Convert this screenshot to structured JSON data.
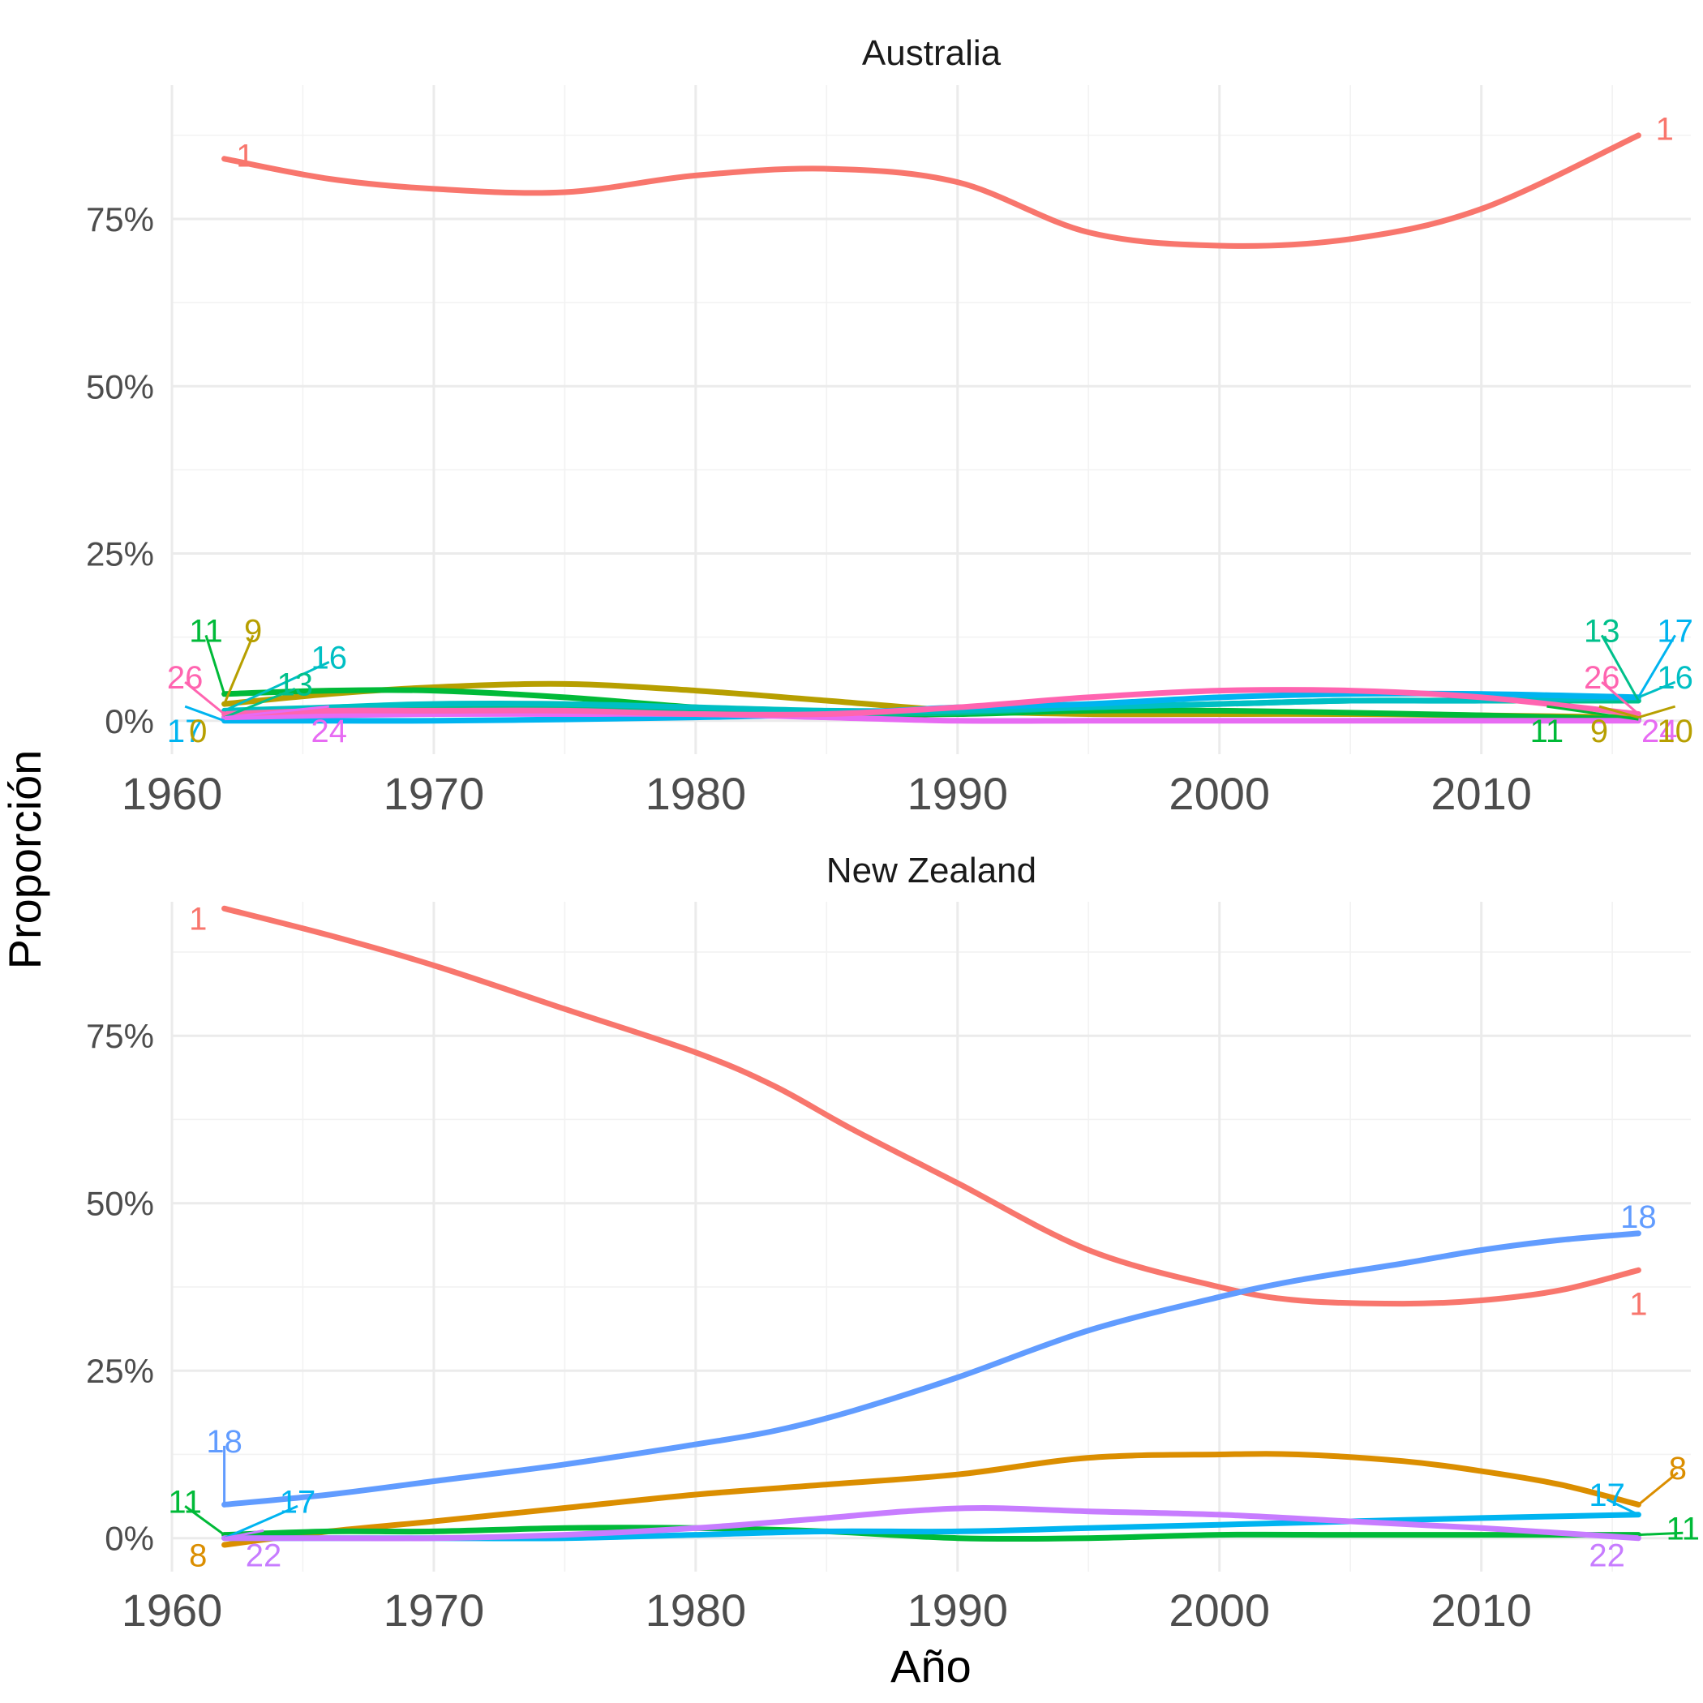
{
  "chart_data": [
    {
      "type": "line",
      "panel": "Australia",
      "xlim": [
        1960,
        2018
      ],
      "ylim": [
        -5,
        95
      ],
      "y_ticks": [
        0,
        25,
        50,
        75
      ],
      "y_tick_labels": [
        "0%",
        "25%",
        "50%",
        "75%"
      ],
      "x_ticks": [
        1960,
        1970,
        1980,
        1990,
        2000,
        2010
      ],
      "x_tick_labels": [
        "1960",
        "1970",
        "1980",
        "1990",
        "2000",
        "2010"
      ],
      "series": [
        {
          "name": "1",
          "color": "#F8766D",
          "x": [
            1962,
            1966,
            1970,
            1975,
            1980,
            1985,
            1990,
            1995,
            2000,
            2005,
            2010,
            2016
          ],
          "y": [
            84,
            81,
            79.5,
            79,
            81.5,
            82.5,
            80.5,
            73,
            71,
            72,
            76.5,
            87.5
          ]
        },
        {
          "name": "9",
          "color": "#B79F00",
          "x": [
            1962,
            1966,
            1970,
            1975,
            1980,
            1985,
            1990,
            1995,
            2000,
            2005,
            2010,
            2016
          ],
          "y": [
            2.5,
            4,
            5,
            5.5,
            4.5,
            3,
            1.5,
            1,
            1,
            1,
            0.8,
            0.5
          ]
        },
        {
          "name": "11",
          "color": "#00BA38",
          "x": [
            1962,
            1966,
            1970,
            1975,
            1980,
            1985,
            1990,
            1995,
            2000,
            2005,
            2010,
            2016
          ],
          "y": [
            4,
            4.5,
            4.5,
            3.5,
            2,
            1,
            1,
            1.5,
            1.5,
            1.2,
            0.8,
            0.2
          ]
        },
        {
          "name": "13",
          "color": "#00C08B",
          "x": [
            1962,
            1966,
            1970,
            1975,
            1980,
            1985,
            1990,
            1995,
            2000,
            2005,
            2010,
            2016
          ],
          "y": [
            0.5,
            1.5,
            2,
            2,
            1.5,
            1,
            1.2,
            2,
            2.5,
            3,
            3,
            3
          ]
        },
        {
          "name": "16",
          "color": "#00BFC4",
          "x": [
            1962,
            1966,
            1970,
            1975,
            1980,
            1985,
            1990,
            1995,
            2000,
            2005,
            2010,
            2016
          ],
          "y": [
            1.5,
            2,
            2.5,
            2.5,
            2,
            1.5,
            1.5,
            2,
            2.5,
            3,
            3,
            3.5
          ]
        },
        {
          "name": "17",
          "color": "#00B4F0",
          "x": [
            1962,
            1966,
            1970,
            1975,
            1980,
            1985,
            1990,
            1995,
            2000,
            2005,
            2010,
            2016
          ],
          "y": [
            0,
            0,
            0,
            0.2,
            0.5,
            1,
            2,
            2.5,
            3.5,
            4,
            4,
            3.5
          ]
        },
        {
          "name": "24",
          "color": "#E76BF3",
          "x": [
            1962,
            1966,
            1970,
            1975,
            1980,
            1985,
            1990,
            1995,
            2000,
            2005,
            2010,
            2016
          ],
          "y": [
            0.5,
            0.8,
            1,
            1,
            1,
            0.5,
            0,
            0,
            0,
            0,
            0,
            0
          ]
        },
        {
          "name": "26",
          "color": "#FF64B0",
          "x": [
            1962,
            1966,
            1970,
            1975,
            1980,
            1985,
            1990,
            1995,
            2000,
            2005,
            2010,
            2016
          ],
          "y": [
            1,
            1.5,
            1.5,
            1.5,
            1,
            1,
            2,
            3.5,
            4.5,
            4.5,
            3.5,
            1
          ]
        }
      ],
      "labels": [
        {
          "text": "1",
          "series": "1"
        },
        {
          "text": "11",
          "series": "11"
        },
        {
          "text": "9",
          "series": "9"
        },
        {
          "text": "16",
          "series": "16"
        },
        {
          "text": "26",
          "series": "26"
        },
        {
          "text": "13",
          "series": "13"
        },
        {
          "text": "17",
          "series": "17"
        },
        {
          "text": "0",
          "series": "9"
        },
        {
          "text": "24",
          "series": "24"
        },
        {
          "text": "1",
          "series": "1"
        },
        {
          "text": "13",
          "series": "13"
        },
        {
          "text": "17",
          "series": "17"
        },
        {
          "text": "26",
          "series": "26"
        },
        {
          "text": "16",
          "series": "16"
        },
        {
          "text": "11",
          "series": "11"
        },
        {
          "text": "9",
          "series": "9"
        },
        {
          "text": "24",
          "series": "24"
        },
        {
          "text": "10",
          "series": "9"
        }
      ]
    },
    {
      "type": "line",
      "panel": "New Zealand",
      "xlim": [
        1960,
        2018
      ],
      "ylim": [
        -5,
        95
      ],
      "y_ticks": [
        0,
        25,
        50,
        75
      ],
      "y_tick_labels": [
        "0%",
        "25%",
        "50%",
        "75%"
      ],
      "x_ticks": [
        1960,
        1970,
        1980,
        1990,
        2000,
        2010
      ],
      "x_tick_labels": [
        "1960",
        "1970",
        "1980",
        "1990",
        "2000",
        "2010"
      ],
      "series": [
        {
          "name": "1",
          "color": "#F8766D",
          "x": [
            1962,
            1966,
            1970,
            1975,
            1980,
            1983,
            1986,
            1990,
            1995,
            2000,
            2003,
            2007,
            2010,
            2013,
            2016
          ],
          "y": [
            94,
            90,
            85.5,
            79,
            72.5,
            67.5,
            61,
            53,
            43,
            37.5,
            35.5,
            35,
            35.5,
            37,
            40
          ]
        },
        {
          "name": "8",
          "color": "#DB8E00",
          "x": [
            1962,
            1966,
            1970,
            1975,
            1980,
            1985,
            1990,
            1995,
            2000,
            2003,
            2007,
            2010,
            2013,
            2016
          ],
          "y": [
            -1,
            1,
            2.5,
            4.5,
            6.5,
            8,
            9.5,
            12,
            12.5,
            12.5,
            11.5,
            10,
            8,
            5
          ]
        },
        {
          "name": "11",
          "color": "#00BA38",
          "x": [
            1962,
            1966,
            1970,
            1975,
            1980,
            1985,
            1990,
            1995,
            2000,
            2005,
            2010,
            2016
          ],
          "y": [
            0.5,
            1,
            1,
            1.5,
            1.5,
            1,
            0,
            0,
            0.5,
            0.5,
            0.5,
            0.5
          ]
        },
        {
          "name": "17",
          "color": "#00B4F0",
          "x": [
            1962,
            1966,
            1970,
            1975,
            1980,
            1985,
            1990,
            1995,
            2000,
            2005,
            2010,
            2016
          ],
          "y": [
            0,
            0,
            0,
            0,
            0.5,
            1,
            1,
            1.5,
            2,
            2.5,
            3,
            3.5
          ]
        },
        {
          "name": "18",
          "color": "#619CFF",
          "x": [
            1962,
            1966,
            1970,
            1975,
            1980,
            1983,
            1986,
            1990,
            1995,
            2000,
            2003,
            2007,
            2010,
            2013,
            2016
          ],
          "y": [
            5,
            6.5,
            8.5,
            11,
            14,
            16,
            19,
            24,
            31,
            36,
            38.5,
            41,
            43,
            44.5,
            45.5
          ]
        },
        {
          "name": "22",
          "color": "#C77CFF",
          "x": [
            1962,
            1966,
            1970,
            1975,
            1980,
            1985,
            1988,
            1991,
            1995,
            2000,
            2005,
            2010,
            2016
          ],
          "y": [
            0,
            0,
            0,
            0.5,
            1.5,
            3,
            4,
            4.5,
            4,
            3.5,
            2.5,
            1.5,
            0
          ]
        }
      ],
      "labels": [
        {
          "text": "1",
          "series": "1"
        },
        {
          "text": "18",
          "series": "18"
        },
        {
          "text": "11",
          "series": "11"
        },
        {
          "text": "17",
          "series": "17"
        },
        {
          "text": "8",
          "series": "8"
        },
        {
          "text": "22",
          "series": "22"
        },
        {
          "text": "18",
          "series": "18"
        },
        {
          "text": "1",
          "series": "1"
        },
        {
          "text": "8",
          "series": "8"
        },
        {
          "text": "17",
          "series": "17"
        },
        {
          "text": "11",
          "series": "11"
        },
        {
          "text": "22",
          "series": "22"
        }
      ]
    }
  ],
  "axes": {
    "xlabel": "Año",
    "ylabel": "Proporción"
  }
}
